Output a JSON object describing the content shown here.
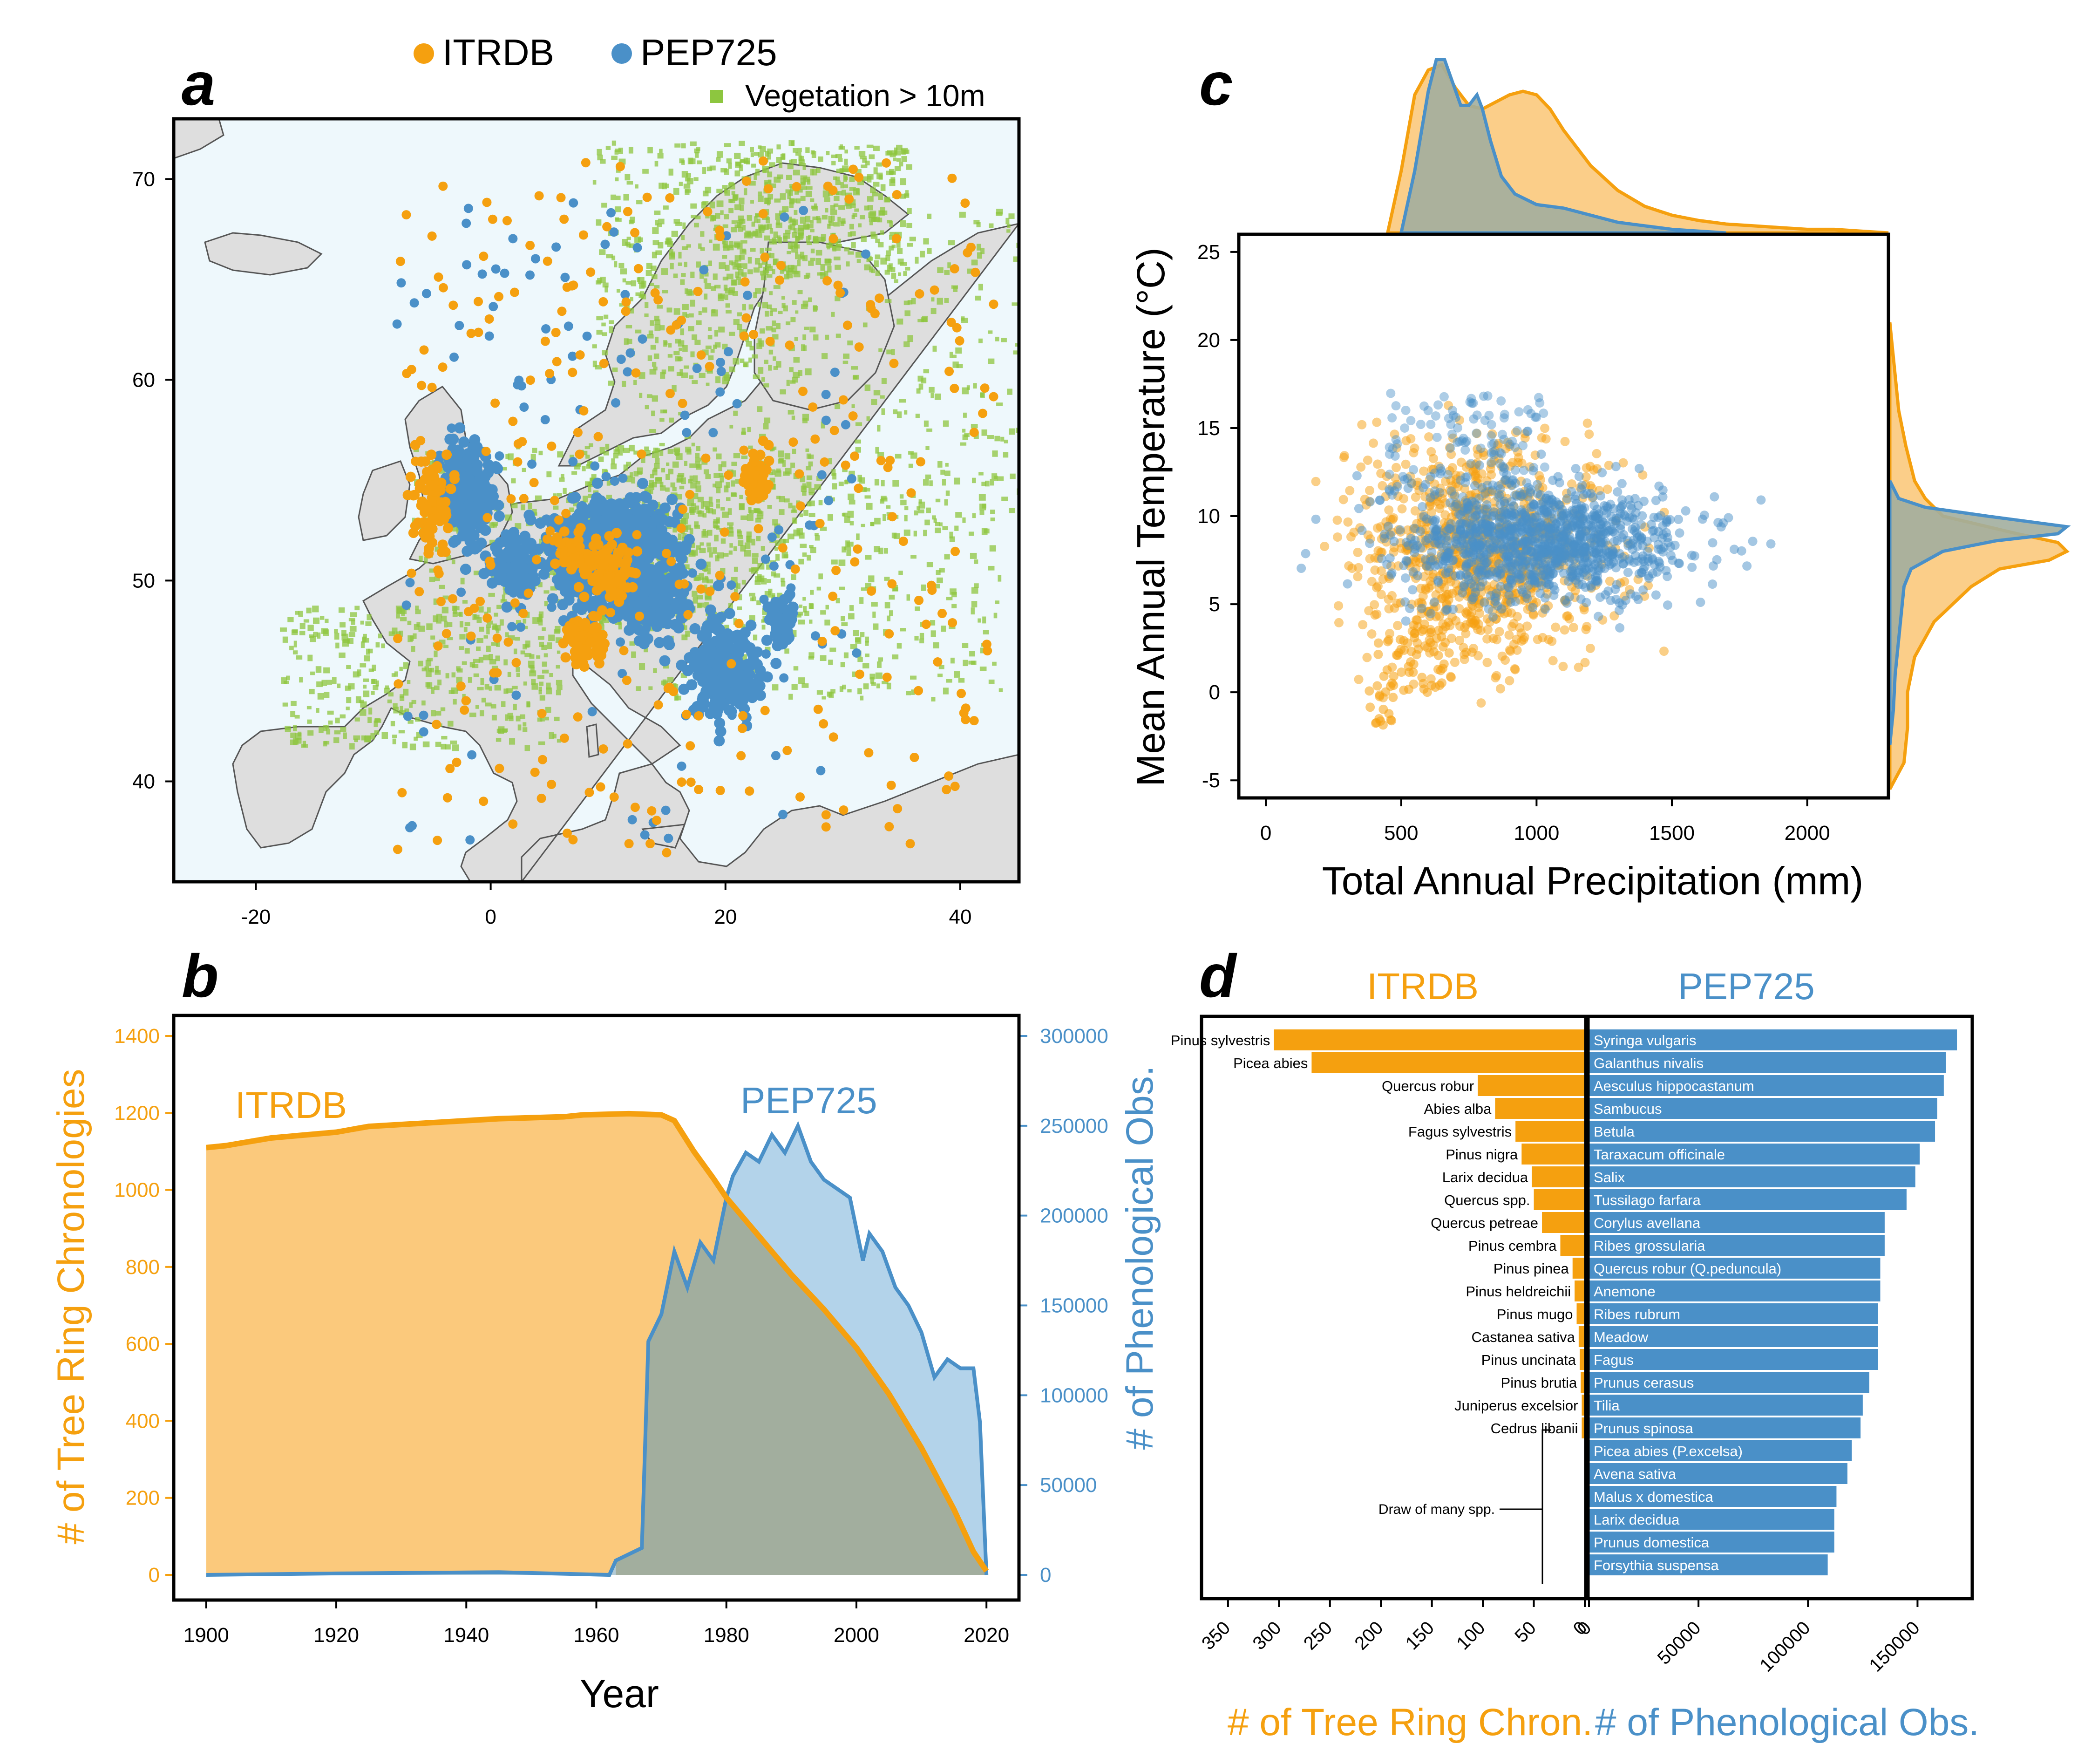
{
  "colors": {
    "orange": "#F5A00F",
    "blue": "#4A90C8",
    "orange_fill": "#FBC97C",
    "blue_fill": "#A6CBE6",
    "overlap": "#A2AE9E",
    "land": "#DEDEDE",
    "sea": "#EEF8FC",
    "veg": "#8DC63F"
  },
  "panels": {
    "a": "a",
    "b": "b",
    "c": "c",
    "d": "d"
  },
  "chart_data": [
    {
      "panel": "a",
      "type": "scatter",
      "legend": [
        {
          "name": "ITRDB",
          "color": "#F5A00F"
        },
        {
          "name": "PEP725",
          "color": "#4A90C8"
        },
        {
          "name": "Vegetation > 10m",
          "color": "#8DC63F"
        }
      ],
      "xlim": [
        -27,
        45
      ],
      "ylim": [
        35,
        73
      ],
      "x_ticks": [
        -20,
        0,
        20,
        40
      ],
      "y_ticks": [
        40,
        50,
        60,
        70
      ],
      "pep_clusters": [
        [
          -2,
          54.2,
          2.2,
          2.4
        ],
        [
          10,
          51,
          5.5,
          2.6
        ],
        [
          14,
          49,
          2.6,
          1.6
        ],
        [
          20,
          45.5,
          3,
          2.2
        ],
        [
          2,
          50.8,
          2,
          1.4
        ],
        [
          11.5,
          52.8,
          3.5,
          1.3
        ],
        [
          25,
          48,
          1.2,
          1.2
        ]
      ],
      "itrdb_clusters": [
        [
          8,
          47,
          1.8,
          1.3
        ],
        [
          10,
          50.5,
          2,
          1.5
        ],
        [
          -5,
          54,
          1.5,
          2
        ],
        [
          22.5,
          55,
          1.2,
          1.2
        ],
        [
          7,
          51.5,
          1.5,
          1
        ]
      ]
    },
    {
      "panel": "b",
      "type": "area",
      "xlabel": "Year",
      "ylabel_left": "# of Tree Ring Chronologies",
      "ylabel_right": "# of Phenological Obs.",
      "xlim": [
        1895,
        2025
      ],
      "ylim_left": [
        0,
        1400
      ],
      "ylim_right": [
        0,
        300000
      ],
      "x_ticks": [
        1900,
        1920,
        1940,
        1960,
        1980,
        2000,
        2020
      ],
      "y_ticks_left": [
        0,
        200,
        400,
        600,
        800,
        1000,
        1200,
        1400
      ],
      "y_ticks_right": [
        0,
        50000,
        100000,
        150000,
        200000,
        250000,
        300000
      ],
      "series": [
        {
          "name": "ITRDB",
          "x": [
            1900,
            1903,
            1910,
            1920,
            1925,
            1935,
            1945,
            1955,
            1958,
            1965,
            1970,
            1972,
            1975,
            1978,
            1980,
            1985,
            1990,
            1995,
            2000,
            2005,
            2010,
            2015,
            2018,
            2020
          ],
          "values": [
            1110,
            1115,
            1135,
            1150,
            1165,
            1175,
            1185,
            1190,
            1195,
            1198,
            1195,
            1180,
            1100,
            1030,
            980,
            880,
            780,
            690,
            590,
            470,
            330,
            170,
            60,
            10
          ]
        },
        {
          "name": "PEP725",
          "x": [
            1900,
            1920,
            1945,
            1962,
            1963,
            1967,
            1968,
            1970,
            1972,
            1974,
            1976,
            1978,
            1980,
            1981,
            1983,
            1985,
            1987,
            1989,
            1991,
            1993,
            1995,
            1997,
            1999,
            2001,
            2002,
            2004,
            2006,
            2008,
            2010,
            2012,
            2014,
            2016,
            2018,
            2019,
            2020
          ],
          "values": [
            0,
            800,
            1500,
            0,
            8000,
            15000,
            130000,
            145000,
            180000,
            160000,
            185000,
            175000,
            210000,
            222000,
            235000,
            230000,
            245000,
            235000,
            250000,
            230000,
            220000,
            215000,
            210000,
            175000,
            190000,
            180000,
            160000,
            150000,
            135000,
            110000,
            120000,
            115000,
            115000,
            85000,
            0
          ]
        }
      ]
    },
    {
      "panel": "c",
      "type": "scatter",
      "xlabel": "Total Annual Precipitation (mm)",
      "ylabel": "Mean Annual Temperature (°C)",
      "xlim": [
        -100,
        2300
      ],
      "ylim": [
        -6,
        26
      ],
      "x_ticks": [
        0,
        500,
        1000,
        1500,
        2000
      ],
      "y_ticks": [
        -5,
        0,
        5,
        10,
        15,
        20,
        25
      ],
      "series": [
        {
          "name": "ITRDB",
          "color": "#F5A00F",
          "cluster_center": [
            800,
            8
          ],
          "cluster_spread": [
            220,
            3
          ]
        },
        {
          "name": "PEP725",
          "color": "#4A90C8",
          "cluster_center": [
            1000,
            8.5
          ],
          "cluster_spread": [
            260,
            1.6
          ]
        }
      ],
      "density_x": {
        "ITRDB": [
          [
            450,
            0
          ],
          [
            500,
            0.35
          ],
          [
            550,
            0.78
          ],
          [
            600,
            0.92
          ],
          [
            650,
            0.95
          ],
          [
            700,
            0.82
          ],
          [
            750,
            0.72
          ],
          [
            800,
            0.7
          ],
          [
            850,
            0.74
          ],
          [
            900,
            0.78
          ],
          [
            950,
            0.8
          ],
          [
            1000,
            0.78
          ],
          [
            1050,
            0.7
          ],
          [
            1100,
            0.58
          ],
          [
            1200,
            0.38
          ],
          [
            1300,
            0.24
          ],
          [
            1400,
            0.15
          ],
          [
            1500,
            0.1
          ],
          [
            1600,
            0.07
          ],
          [
            1700,
            0.05
          ],
          [
            1800,
            0.04
          ],
          [
            1900,
            0.03
          ],
          [
            2000,
            0.02
          ],
          [
            2100,
            0.02
          ],
          [
            2200,
            0.01
          ],
          [
            2300,
            0
          ]
        ],
        "PEP725": [
          [
            500,
            0
          ],
          [
            550,
            0.35
          ],
          [
            600,
            0.8
          ],
          [
            630,
            0.98
          ],
          [
            660,
            0.98
          ],
          [
            690,
            0.85
          ],
          [
            720,
            0.72
          ],
          [
            750,
            0.72
          ],
          [
            780,
            0.78
          ],
          [
            800,
            0.7
          ],
          [
            830,
            0.52
          ],
          [
            870,
            0.32
          ],
          [
            920,
            0.22
          ],
          [
            1000,
            0.16
          ],
          [
            1100,
            0.14
          ],
          [
            1200,
            0.1
          ],
          [
            1300,
            0.06
          ],
          [
            1400,
            0.04
          ],
          [
            1500,
            0.02
          ],
          [
            1600,
            0.01
          ],
          [
            1700,
            0
          ]
        ]
      },
      "density_y": {
        "ITRDB": [
          [
            -5.5,
            0
          ],
          [
            -4,
            0.08
          ],
          [
            -2,
            0.1
          ],
          [
            0,
            0.1
          ],
          [
            2,
            0.14
          ],
          [
            4,
            0.25
          ],
          [
            6,
            0.46
          ],
          [
            7,
            0.62
          ],
          [
            7.5,
            0.9
          ],
          [
            8,
            1.0
          ],
          [
            8.5,
            0.95
          ],
          [
            9,
            0.72
          ],
          [
            10,
            0.3
          ],
          [
            11,
            0.2
          ],
          [
            12,
            0.14
          ],
          [
            14,
            0.09
          ],
          [
            16,
            0.05
          ],
          [
            18,
            0.03
          ],
          [
            20,
            0.01
          ],
          [
            21,
            0
          ]
        ],
        "PEP725": [
          [
            -3,
            0
          ],
          [
            -1,
            0.02
          ],
          [
            1,
            0.03
          ],
          [
            3,
            0.05
          ],
          [
            5,
            0.07
          ],
          [
            6,
            0.08
          ],
          [
            7,
            0.12
          ],
          [
            8,
            0.3
          ],
          [
            8.6,
            0.6
          ],
          [
            9,
            0.95
          ],
          [
            9.4,
            1.0
          ],
          [
            10,
            0.55
          ],
          [
            10.5,
            0.2
          ],
          [
            11,
            0.05
          ],
          [
            12,
            0
          ]
        ]
      }
    },
    {
      "panel": "d",
      "type": "bar",
      "left": {
        "title": "ITRDB",
        "xlabel": "# of Tree Ring Chron.",
        "x_ticks": [
          0,
          50,
          100,
          150,
          200,
          250,
          300,
          350
        ],
        "xlim": [
          0,
          360
        ],
        "categories": [
          "Pinus sylvestris",
          "Picea abies",
          "Quercus robur",
          "Abies alba",
          "Fagus sylvestris",
          "Pinus nigra",
          "Larix decidua",
          "Quercus spp.",
          "Quercus petreae",
          "Pinus cembra",
          "Pinus pinea",
          "Pinus heldreichii",
          "Pinus mugo",
          "Castanea sativa",
          "Pinus uncinata",
          "Pinus brutia",
          "Juniperus excelsior",
          "Cedrus libanii"
        ],
        "values": [
          305,
          268,
          105,
          88,
          68,
          62,
          52,
          50,
          42,
          24,
          12,
          10,
          8,
          6,
          5,
          4,
          3,
          3
        ]
      },
      "right": {
        "title": "PEP725",
        "xlabel": "# of Phenological Obs.",
        "x_ticks": [
          0,
          50000,
          100000,
          150000
        ],
        "xlim": [
          0,
          175000
        ],
        "categories": [
          "Syringa vulgaris",
          "Galanthus nivalis",
          "Aesculus hippocastanum",
          "Sambucus",
          "Betula",
          "Taraxacum officinale",
          "Salix",
          "Tussilago farfara",
          "Corylus avellana",
          "Ribes grossularia",
          "Quercus robur (Q.peduncula)",
          "Anemone",
          "Ribes rubrum",
          "Meadow",
          "Fagus",
          "Prunus cerasus",
          "Tilia",
          "Prunus spinosa",
          "Picea abies (P.excelsa)",
          "Avena sativa",
          "Malus x domestica",
          "Larix decidua",
          "Prunus domestica",
          "Forsythia suspensa"
        ],
        "values": [
          168000,
          163000,
          162000,
          159000,
          158000,
          151000,
          149000,
          145000,
          135000,
          135000,
          133000,
          133000,
          132000,
          132000,
          132000,
          128000,
          125000,
          124000,
          120000,
          118000,
          113000,
          112000,
          112000,
          109000
        ]
      },
      "annotation": "Draw of many spp."
    }
  ]
}
